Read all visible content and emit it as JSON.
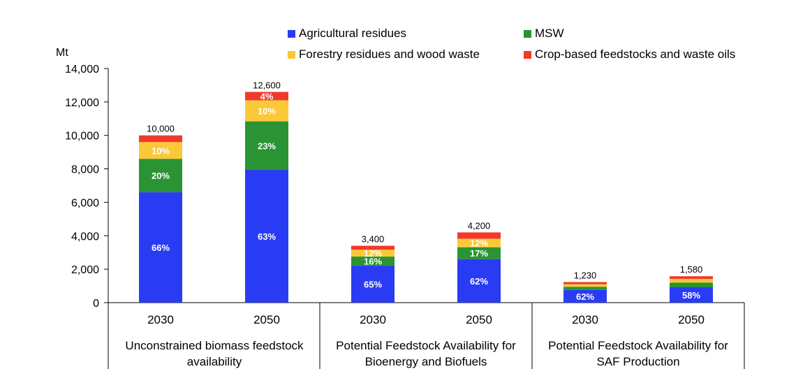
{
  "chart_data": {
    "type": "bar",
    "stacked": true,
    "ylabel": "Mt",
    "ylim": [
      0,
      14000
    ],
    "yticks": [
      "0",
      "2,000",
      "4,000",
      "6,000",
      "8,000",
      "10,000",
      "12,000",
      "14,000"
    ],
    "legend_position": "top",
    "grid": false,
    "groups": [
      {
        "label": "Unconstrained biomass feedstock availability",
        "line1": "Unconstrained biomass feedstock",
        "line2": "availability"
      },
      {
        "label": "Potential Feedstock Availability for Bioenergy and Biofuels",
        "line1": "Potential Feedstock Availability for",
        "line2": "Bioenergy and Biofuels"
      },
      {
        "label": "Potential Feedstock Availability for SAF Production",
        "line1": "Potential Feedstock Availability for",
        "line2": "SAF Production"
      }
    ],
    "categories": [
      "2030",
      "2050",
      "2030",
      "2050",
      "2030",
      "2050"
    ],
    "totals": [
      10000,
      12600,
      3400,
      4200,
      1230,
      1580
    ],
    "total_labels": [
      "10,000",
      "12,600",
      "3,400",
      "4,200",
      "1,230",
      "1,580"
    ],
    "series": [
      {
        "name": "Agricultural residues",
        "color": "#2a3cf3",
        "values": [
          6600,
          7940,
          2210,
          2600,
          760,
          920
        ],
        "labels": [
          "66%",
          "63%",
          "65%",
          "62%",
          "62%",
          "58%"
        ]
      },
      {
        "name": "MSW",
        "color": "#2a9434",
        "values": [
          2000,
          2900,
          545,
          715,
          190,
          280
        ],
        "labels": [
          "20%",
          "23%",
          "16%",
          "17%",
          "",
          ""
        ]
      },
      {
        "name": "Forestry residues and wood waste",
        "color": "#fbc937",
        "values": [
          1000,
          1260,
          410,
          505,
          150,
          220
        ],
        "labels": [
          "10%",
          "10%",
          "12%",
          "12%",
          "",
          ""
        ]
      },
      {
        "name": "Crop-based feedstocks and waste oils",
        "color": "#ef3a2c",
        "values": [
          400,
          500,
          235,
          380,
          130,
          160
        ],
        "labels": [
          "",
          "4%",
          "",
          "",
          "",
          ""
        ]
      }
    ]
  }
}
